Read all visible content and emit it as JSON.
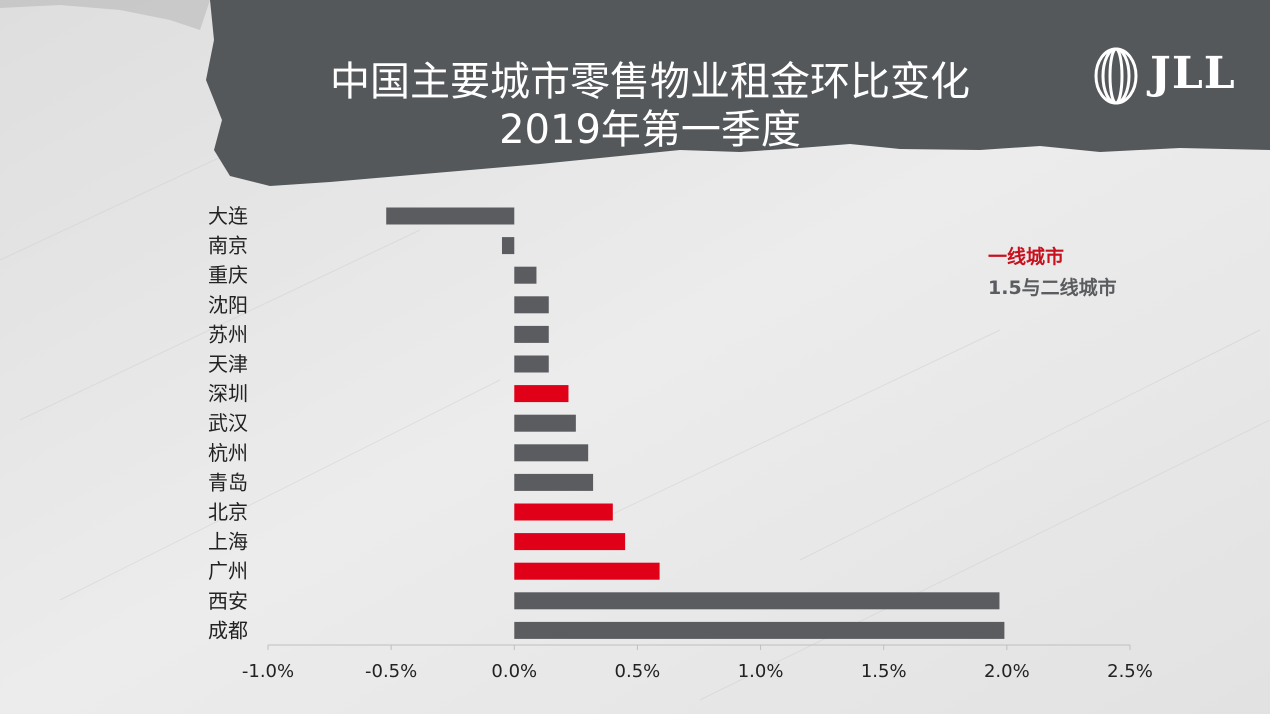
{
  "header": {
    "title_line1": "中国主要城市零售物业租金环比变化",
    "title_line2": "2019年第一季度",
    "logo_text": "JLL"
  },
  "legend": {
    "items": [
      {
        "label": "一线城市",
        "color": "#c8101e"
      },
      {
        "label": "1.5与二线城市",
        "color": "#5a5c5f"
      }
    ]
  },
  "colors": {
    "tier1": "#e00017",
    "tier2": "#5a5c5f",
    "header_band": "#54585b"
  },
  "chart_data": {
    "type": "bar",
    "orientation": "horizontal",
    "title": "",
    "xlabel": "",
    "ylabel": "",
    "xlim": [
      -1.0,
      2.5
    ],
    "xticks": [
      "-1.0%",
      "-0.5%",
      "0.0%",
      "0.5%",
      "1.0%",
      "1.5%",
      "2.0%",
      "2.5%"
    ],
    "xtick_values": [
      -1.0,
      -0.5,
      0.0,
      0.5,
      1.0,
      1.5,
      2.0,
      2.5
    ],
    "grid": false,
    "legend_position": "top-right",
    "categories": [
      "大连",
      "南京",
      "重庆",
      "沈阳",
      "苏州",
      "天津",
      "深圳",
      "武汉",
      "杭州",
      "青岛",
      "北京",
      "上海",
      "广州",
      "西安",
      "成都"
    ],
    "values": [
      -0.52,
      -0.05,
      0.09,
      0.14,
      0.14,
      0.14,
      0.22,
      0.25,
      0.3,
      0.32,
      0.4,
      0.45,
      0.59,
      1.97,
      1.99
    ],
    "tier": [
      "tier2",
      "tier2",
      "tier2",
      "tier2",
      "tier2",
      "tier2",
      "tier1",
      "tier2",
      "tier2",
      "tier2",
      "tier1",
      "tier1",
      "tier1",
      "tier2",
      "tier2"
    ]
  }
}
